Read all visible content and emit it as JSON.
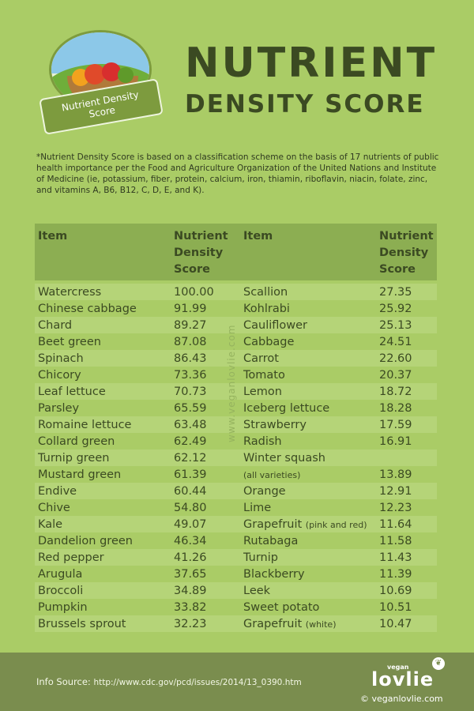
{
  "header": {
    "badge_line1": "Nutrient Density",
    "badge_line2": "Score",
    "title_line1": "NUTRIENT",
    "title_line2": "DENSITY SCORE"
  },
  "note": "*Nutrient Density Score is based on a classification scheme on the basis of 17 nutrients of public health importance per the Food and Agriculture Organization of the United Nations and Institute of Medicine (ie, potassium, fiber, protein, calcium, iron, thiamin, riboflavin, niacin, folate, zinc, and vitamins A, B6, B12, C, D, E, and K).",
  "table": {
    "col_item": "Item",
    "col_score_l1": "Nutrient",
    "col_score_l2": "Density",
    "col_score_l3": "Score",
    "rows": [
      {
        "item1": "Watercress",
        "score1": "100.00",
        "item2": "Scallion",
        "item2_note": "",
        "score2": "27.35"
      },
      {
        "item1": "Chinese cabbage",
        "score1": "91.99",
        "item2": "Kohlrabi",
        "item2_note": "",
        "score2": "25.92"
      },
      {
        "item1": "Chard",
        "score1": "89.27",
        "item2": "Cauliflower",
        "item2_note": "",
        "score2": "25.13"
      },
      {
        "item1": "Beet green",
        "score1": "87.08",
        "item2": "Cabbage",
        "item2_note": "",
        "score2": "24.51"
      },
      {
        "item1": "Spinach",
        "score1": "86.43",
        "item2": "Carrot",
        "item2_note": "",
        "score2": "22.60"
      },
      {
        "item1": "Chicory",
        "score1": "73.36",
        "item2": "Tomato",
        "item2_note": "",
        "score2": "20.37"
      },
      {
        "item1": "Leaf lettuce",
        "score1": "70.73",
        "item2": "Lemon",
        "item2_note": "",
        "score2": "18.72"
      },
      {
        "item1": "Parsley",
        "score1": "65.59",
        "item2": "Iceberg lettuce",
        "item2_note": "",
        "score2": "18.28"
      },
      {
        "item1": "Romaine lettuce",
        "score1": "63.48",
        "item2": "Strawberry",
        "item2_note": "",
        "score2": "17.59"
      },
      {
        "item1": "Collard green",
        "score1": "62.49",
        "item2": "Radish",
        "item2_note": "",
        "score2": "16.91"
      },
      {
        "item1": "Turnip green",
        "score1": "62.12",
        "item2": "Winter squash",
        "item2_note": "",
        "score2": ""
      },
      {
        "item1": "Mustard green",
        "score1": "61.39",
        "item2": "",
        "item2_note": "(all varieties)",
        "score2": "13.89"
      },
      {
        "item1": "Endive",
        "score1": "60.44",
        "item2": "Orange",
        "item2_note": "",
        "score2": "12.91"
      },
      {
        "item1": "Chive",
        "score1": "54.80",
        "item2": "Lime",
        "item2_note": "",
        "score2": "12.23"
      },
      {
        "item1": "Kale",
        "score1": "49.07",
        "item2": "Grapefruit",
        "item2_note": "(pink and red)",
        "score2": "11.64"
      },
      {
        "item1": "Dandelion green",
        "score1": "46.34",
        "item2": "Rutabaga",
        "item2_note": "",
        "score2": "11.58"
      },
      {
        "item1": "Red pepper",
        "score1": "41.26",
        "item2": "Turnip",
        "item2_note": "",
        "score2": "11.43"
      },
      {
        "item1": "Arugula",
        "score1": "37.65",
        "item2": "Blackberry",
        "item2_note": "",
        "score2": "11.39"
      },
      {
        "item1": "Broccoli",
        "score1": "34.89",
        "item2": "Leek",
        "item2_note": "",
        "score2": "10.69"
      },
      {
        "item1": "Pumpkin",
        "score1": "33.82",
        "item2": "Sweet potato",
        "item2_note": "",
        "score2": "10.51"
      },
      {
        "item1": "Brussels sprout",
        "score1": "32.23",
        "item2": "Grapefruit",
        "item2_note": "(white)",
        "score2": "10.47"
      }
    ]
  },
  "watermark": "www.veganlovlie.com",
  "footer": {
    "source_label": "Info Source:",
    "source_url": "http://www.cdc.gov/pcd/issues/2014/13_0390.htm",
    "logo_small": "vegan",
    "logo_main": "lovlie",
    "copyright": "© veganlovlie.com"
  },
  "colors": {
    "background": "#aacc66",
    "header_row": "#8cae52",
    "stripe": "#b5d478",
    "footer": "#7a8d4e",
    "text": "#3b4a22"
  }
}
